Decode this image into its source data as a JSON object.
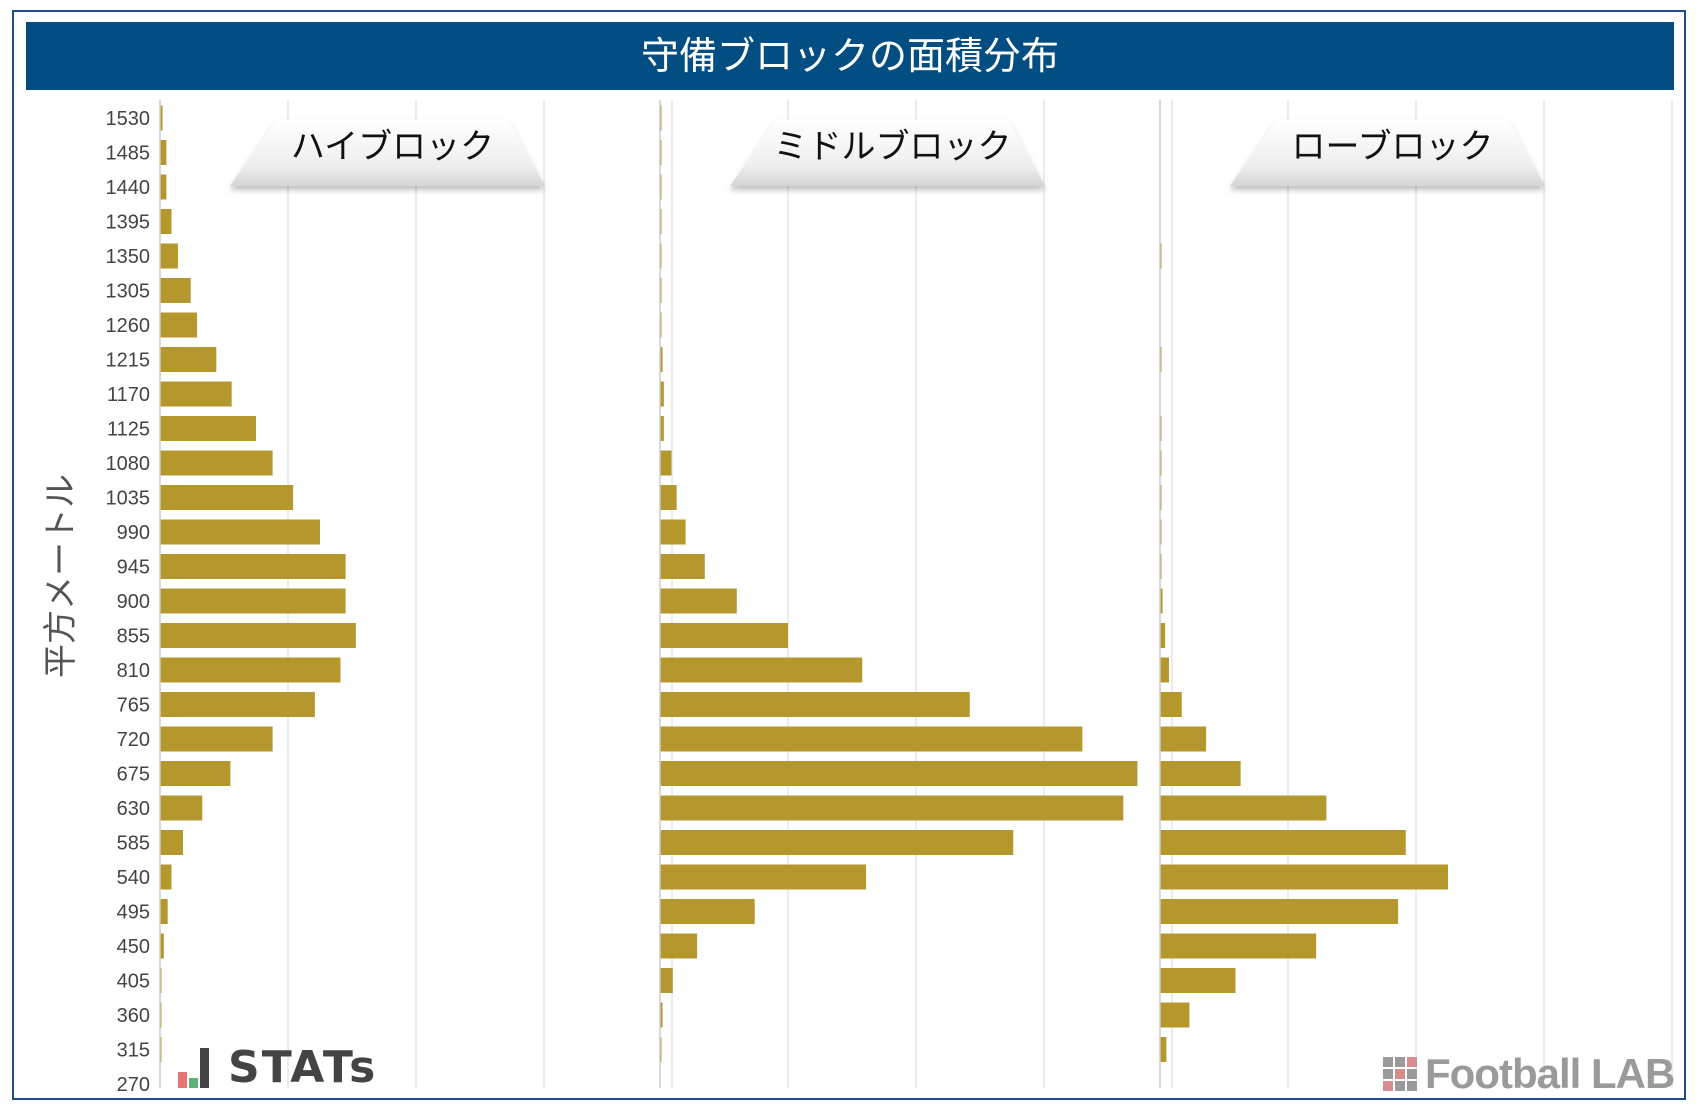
{
  "colors": {
    "title_bg": "#024e83",
    "bar": "#b4982d",
    "grid": "#e6e6e6",
    "axis_text": "#444444",
    "frame": "#1d4f86"
  },
  "chart_data": {
    "type": "bar",
    "orientation": "horizontal",
    "title": "守備ブロックの面積分布",
    "ylabel": "平方メートル",
    "xlabel": "",
    "categories": [
      1530,
      1485,
      1440,
      1395,
      1350,
      1305,
      1260,
      1215,
      1170,
      1125,
      1080,
      1035,
      990,
      945,
      900,
      855,
      810,
      765,
      720,
      675,
      630,
      585,
      540,
      495,
      450,
      405,
      360,
      315,
      270
    ],
    "xlim": [
      0,
      4
    ],
    "grid": true,
    "panels": [
      {
        "name": "ハイブロック",
        "values": [
          0.02,
          0.05,
          0.05,
          0.09,
          0.14,
          0.24,
          0.29,
          0.44,
          0.56,
          0.75,
          0.88,
          1.04,
          1.25,
          1.45,
          1.45,
          1.53,
          1.41,
          1.21,
          0.88,
          0.55,
          0.33,
          0.18,
          0.09,
          0.06,
          0.03,
          0.01,
          0.01,
          0.01,
          0.0
        ]
      },
      {
        "name": "ミドルブロック",
        "values": [
          0.01,
          0.01,
          0.01,
          0.01,
          0.01,
          0.01,
          0.01,
          0.02,
          0.03,
          0.03,
          0.09,
          0.13,
          0.2,
          0.35,
          0.6,
          1.0,
          1.58,
          2.42,
          3.3,
          3.73,
          3.62,
          2.76,
          1.61,
          0.74,
          0.29,
          0.1,
          0.02,
          0.01,
          0.0
        ]
      },
      {
        "name": "ローブロック",
        "values": [
          0.0,
          0.0,
          0.0,
          0.0,
          0.01,
          0.0,
          0.0,
          0.01,
          0.0,
          0.01,
          0.01,
          0.01,
          0.01,
          0.01,
          0.02,
          0.04,
          0.07,
          0.17,
          0.36,
          0.63,
          1.3,
          1.92,
          2.25,
          1.86,
          1.22,
          0.59,
          0.23,
          0.05,
          0.0
        ]
      }
    ]
  },
  "logos": {
    "stats": "STATs",
    "football_lab": "Football LAB"
  }
}
